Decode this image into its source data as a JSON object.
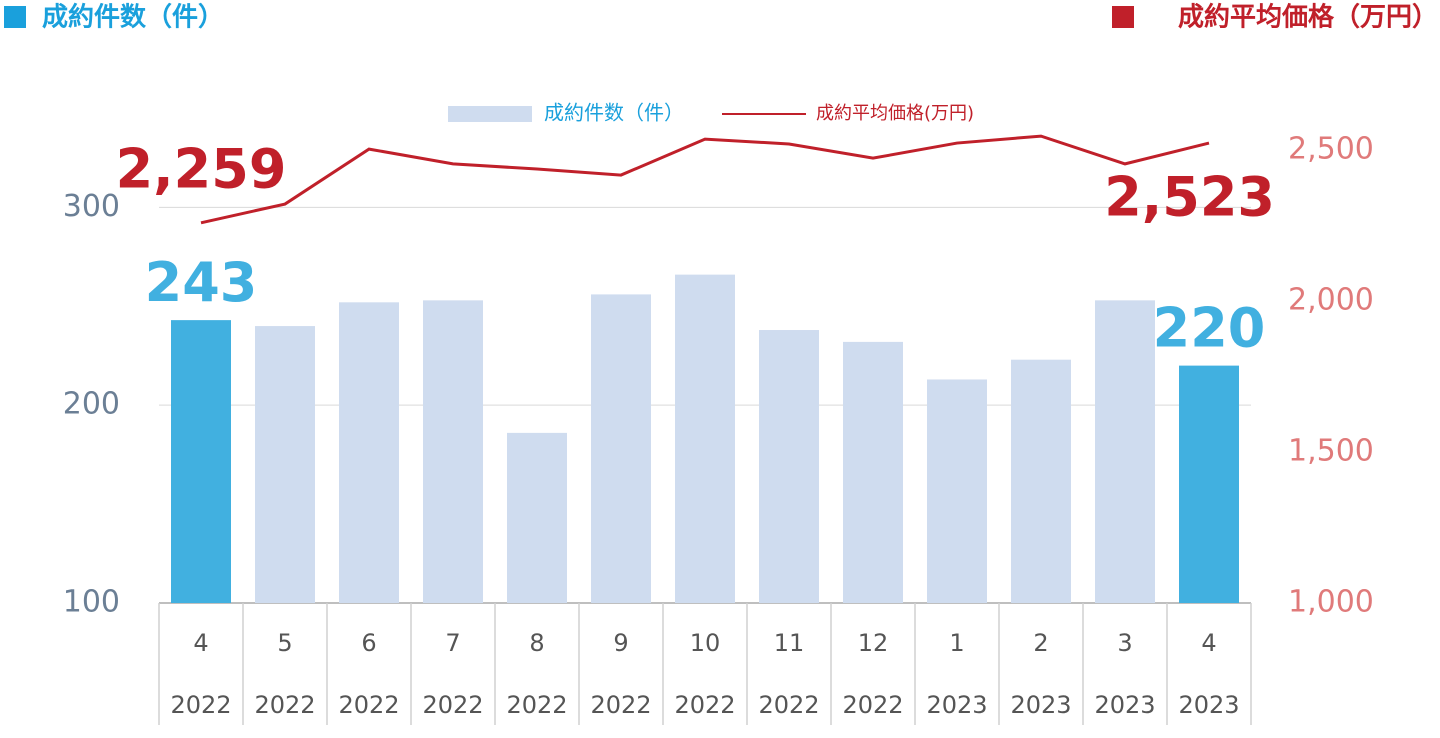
{
  "chart_data": {
    "type": "bar-line",
    "ylabel": "成約件数（件）",
    "y2label": "成約平均価格（万円）",
    "categories": [
      "4",
      "5",
      "6",
      "7",
      "8",
      "9",
      "10",
      "11",
      "12",
      "1",
      "2",
      "3",
      "4"
    ],
    "category_years": [
      "2022",
      "2022",
      "2022",
      "2022",
      "2022",
      "2022",
      "2022",
      "2022",
      "2022",
      "2023",
      "2023",
      "2023",
      "2023"
    ],
    "series": [
      {
        "name": "成約件数（件）",
        "type": "bar",
        "axis": "y",
        "color": "#cfdcef",
        "colors": [
          "#41b0e0",
          "#cfdcef",
          "#cfdcef",
          "#cfdcef",
          "#cfdcef",
          "#cfdcef",
          "#cfdcef",
          "#cfdcef",
          "#cfdcef",
          "#cfdcef",
          "#cfdcef",
          "#cfdcef",
          "#41b0e0"
        ],
        "values": [
          243,
          240,
          252,
          253,
          186,
          256,
          266,
          238,
          232,
          213,
          223,
          253,
          220
        ],
        "value_labels": [
          "243",
          null,
          null,
          null,
          null,
          null,
          null,
          null,
          null,
          null,
          null,
          null,
          "220"
        ]
      },
      {
        "name": "成約平均価格(万円)",
        "type": "line",
        "axis": "y2",
        "color": "#c0202a",
        "values": [
          2259,
          2321,
          2503,
          2454,
          2437,
          2417,
          2536,
          2520,
          2473,
          2523,
          2546,
          2454,
          2523
        ],
        "value_labels": [
          "2,259",
          null,
          null,
          null,
          null,
          null,
          null,
          null,
          null,
          null,
          null,
          null,
          "2,523"
        ]
      }
    ],
    "ylim": [
      100,
      329
    ],
    "yticks": [
      100,
      200,
      300
    ],
    "y2lim": [
      1000,
      2500
    ],
    "y2ticks": [
      {
        "value": 1000,
        "label": "1,000"
      },
      {
        "value": 1500,
        "label": "1,500"
      },
      {
        "value": 2000,
        "label": "2,000"
      },
      {
        "value": 2500,
        "label": "2,500"
      }
    ],
    "grid": true
  }
}
